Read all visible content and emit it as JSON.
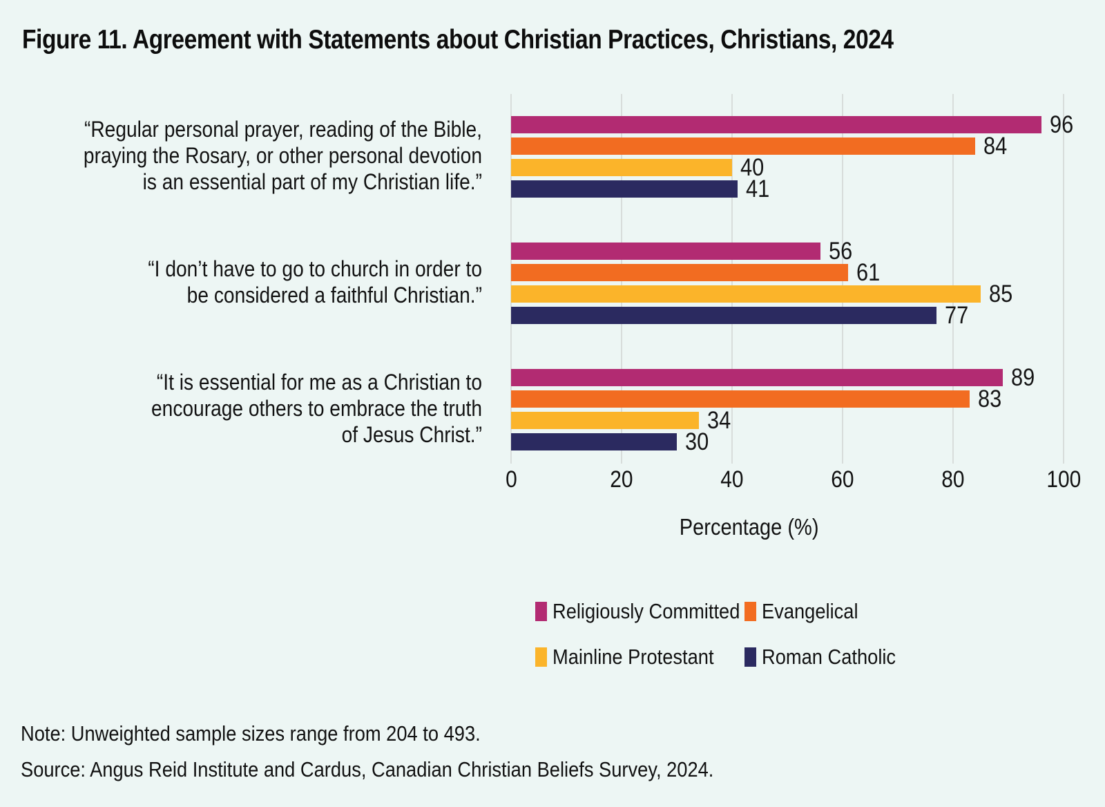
{
  "page": {
    "title": "Figure 11. Agreement with Statements about Christian Practices, Christians, 2024",
    "note": "Note: Unweighted sample sizes range from 204 to 493.",
    "source": "Source: Angus Reid Institute and Cardus, Canadian Christian Beliefs Survey, 2024.",
    "background_color": "#edf6f4"
  },
  "chart_data": {
    "type": "bar",
    "orientation": "horizontal",
    "title": "Figure 11. Agreement with Statements about Christian Practices, Christians, 2024",
    "categories": [
      "“Regular personal prayer, reading of the Bible,\npraying the Rosary, or other personal devotion\nis an essential part of my Christian life.”",
      "“I don’t have to go to church in order to\nbe considered a faithful Christian.”",
      "“It is essential for me as a Christian to\nencourage others to embrace the truth\nof Jesus Christ.”"
    ],
    "series": [
      {
        "name": "Religiously Committed",
        "color": "#b22b72",
        "values": [
          96,
          56,
          89
        ]
      },
      {
        "name": "Evangelical",
        "color": "#f26c21",
        "values": [
          84,
          61,
          83
        ]
      },
      {
        "name": "Mainline Protestant",
        "color": "#fbb42a",
        "values": [
          40,
          85,
          34
        ]
      },
      {
        "name": "Roman Catholic",
        "color": "#2b2a60",
        "values": [
          41,
          77,
          30
        ]
      }
    ],
    "xlabel": "Percentage (%)",
    "xlim": [
      0,
      100
    ],
    "xticks": [
      0,
      20,
      40,
      60,
      80,
      100
    ],
    "grid": true,
    "gridline_color": "#d8dddb",
    "value_labels": true,
    "legend_position": "bottom"
  }
}
